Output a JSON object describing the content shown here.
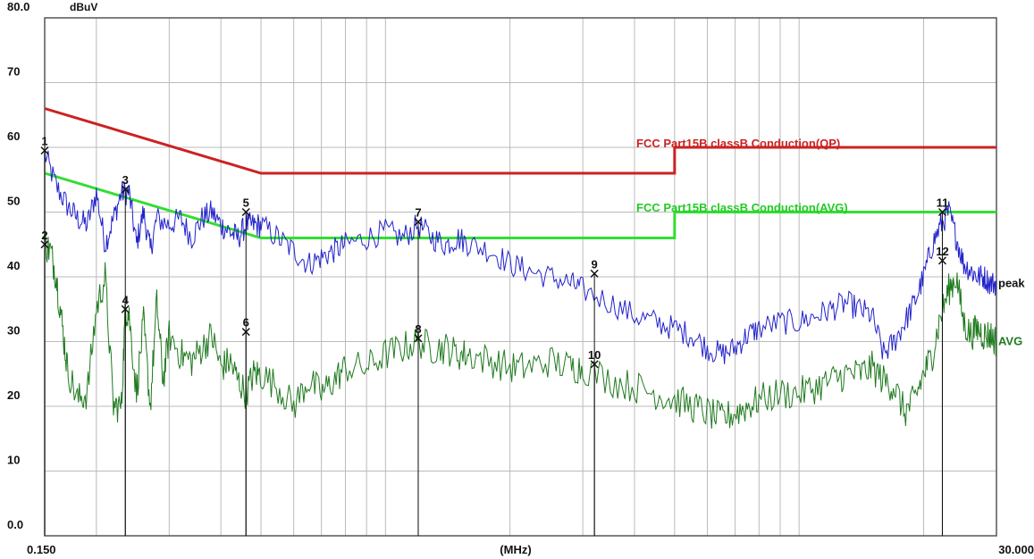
{
  "chart_data": {
    "type": "line",
    "ylabel": "dBuV",
    "xlabel": "(MHz)",
    "x_scale": "log",
    "xlim": [
      0.15,
      30.0
    ],
    "ylim": [
      0,
      80
    ],
    "x_tick_labels": [
      "0.150",
      "30.000"
    ],
    "y_tick_labels": [
      "0.0",
      "10",
      "20",
      "30",
      "40",
      "50",
      "60",
      "70",
      "80.0"
    ],
    "grid": true,
    "colors": {
      "qp_limit": "#cc2222",
      "avg_limit": "#33dd33",
      "peak_trace": "#2222cc",
      "avg_trace": "#1f7a1f",
      "frame": "#555555",
      "grid": "#bbbbbb"
    },
    "limits": [
      {
        "name": "FCC  Part15B classB Conduction(QP)",
        "segments": [
          {
            "x": [
              0.15,
              0.5
            ],
            "y": [
              66,
              56
            ]
          },
          {
            "x": [
              0.5,
              5.0
            ],
            "y": [
              56,
              56
            ]
          },
          {
            "x": [
              5.0,
              30.0
            ],
            "y": [
              60,
              60
            ]
          }
        ]
      },
      {
        "name": "FCC  Part15B classB Conduction(AVG)",
        "segments": [
          {
            "x": [
              0.15,
              0.5
            ],
            "y": [
              56,
              46
            ]
          },
          {
            "x": [
              0.5,
              5.0
            ],
            "y": [
              46,
              46
            ]
          },
          {
            "x": [
              5.0,
              30.0
            ],
            "y": [
              50,
              50
            ]
          }
        ]
      }
    ],
    "series": [
      {
        "name": "peak",
        "x": [
          0.15,
          0.16,
          0.17,
          0.18,
          0.19,
          0.2,
          0.21,
          0.22,
          0.23,
          0.24,
          0.25,
          0.26,
          0.27,
          0.28,
          0.3,
          0.32,
          0.34,
          0.36,
          0.38,
          0.4,
          0.42,
          0.44,
          0.46,
          0.48,
          0.5,
          0.55,
          0.6,
          0.65,
          0.7,
          0.75,
          0.8,
          0.9,
          1.0,
          1.1,
          1.2,
          1.3,
          1.4,
          1.5,
          1.6,
          1.8,
          2.0,
          2.2,
          2.5,
          2.8,
          3.0,
          3.5,
          4.0,
          4.5,
          5.0,
          5.5,
          6.0,
          6.5,
          7.0,
          7.5,
          8.0,
          9.0,
          10.0,
          11.0,
          12.0,
          13.0,
          14.0,
          15.0,
          16.0,
          17.0,
          18.0,
          19.0,
          20.0,
          21.0,
          22.0,
          23.0,
          24.0,
          25.0,
          26.0,
          27.0,
          28.0,
          29.0,
          30.0
        ],
        "y": [
          59,
          54,
          51,
          49,
          48,
          53,
          45,
          49,
          53,
          53,
          45,
          50,
          44,
          49,
          48,
          49,
          46,
          49,
          50,
          48,
          47,
          46,
          48,
          48,
          48,
          46,
          44,
          42,
          43,
          44,
          45,
          46,
          47,
          46,
          48,
          46,
          45,
          46,
          45,
          44,
          42,
          41,
          40,
          39,
          38,
          36,
          34,
          33,
          32,
          31,
          29,
          28,
          29,
          31,
          32,
          33,
          33,
          34,
          35,
          36,
          35,
          34,
          28,
          30,
          33,
          36,
          40,
          45,
          48,
          50,
          46,
          42,
          41,
          40,
          40,
          39,
          39
        ]
      },
      {
        "name": "AVG",
        "x": [
          0.15,
          0.155,
          0.16,
          0.165,
          0.17,
          0.18,
          0.19,
          0.2,
          0.21,
          0.22,
          0.23,
          0.235,
          0.24,
          0.25,
          0.26,
          0.27,
          0.28,
          0.29,
          0.3,
          0.32,
          0.34,
          0.36,
          0.38,
          0.4,
          0.42,
          0.44,
          0.46,
          0.48,
          0.5,
          0.55,
          0.6,
          0.65,
          0.7,
          0.75,
          0.8,
          0.9,
          1.0,
          1.1,
          1.2,
          1.3,
          1.4,
          1.5,
          1.6,
          1.8,
          2.0,
          2.2,
          2.5,
          2.8,
          3.0,
          3.5,
          4.0,
          4.5,
          5.0,
          5.5,
          6.0,
          6.5,
          7.0,
          7.5,
          8.0,
          9.0,
          10.0,
          11.0,
          12.0,
          13.0,
          14.0,
          15.0,
          16.0,
          17.0,
          18.0,
          19.0,
          20.0,
          21.0,
          22.0,
          23.0,
          24.0,
          25.0,
          26.0,
          27.0,
          28.0,
          29.0,
          30.0
        ],
        "y": [
          45,
          44,
          40,
          33,
          26,
          21,
          22,
          35,
          40,
          20,
          20,
          35,
          34,
          22,
          33,
          20,
          36,
          24,
          31,
          28,
          27,
          29,
          31,
          26,
          27,
          24,
          22,
          25,
          25,
          23,
          20,
          24,
          22,
          24,
          26,
          26,
          28,
          29,
          30,
          29,
          29,
          28,
          28,
          27,
          26,
          26,
          27,
          26,
          26,
          24,
          23,
          22,
          21,
          20,
          19,
          18,
          19,
          20,
          21,
          22,
          22,
          23,
          24,
          25,
          25,
          26,
          24,
          23,
          19,
          21,
          25,
          28,
          34,
          38,
          40,
          33,
          31,
          32,
          31,
          31,
          30
        ]
      }
    ],
    "markers": [
      {
        "label": "1",
        "x": 0.15,
        "y": 59.5
      },
      {
        "label": "2",
        "x": 0.15,
        "y": 45
      },
      {
        "label": "3",
        "x": 0.235,
        "y": 53.5
      },
      {
        "label": "4",
        "x": 0.235,
        "y": 35
      },
      {
        "label": "5",
        "x": 0.46,
        "y": 50
      },
      {
        "label": "6",
        "x": 0.46,
        "y": 31.5
      },
      {
        "label": "7",
        "x": 1.2,
        "y": 48.5
      },
      {
        "label": "8",
        "x": 1.2,
        "y": 30.5
      },
      {
        "label": "9",
        "x": 3.2,
        "y": 40.5
      },
      {
        "label": "10",
        "x": 3.2,
        "y": 26.5
      },
      {
        "label": "11",
        "x": 22.2,
        "y": 50
      },
      {
        "label": "12",
        "x": 22.2,
        "y": 42.5
      }
    ],
    "trace_labels": [
      "peak",
      "AVG"
    ]
  }
}
